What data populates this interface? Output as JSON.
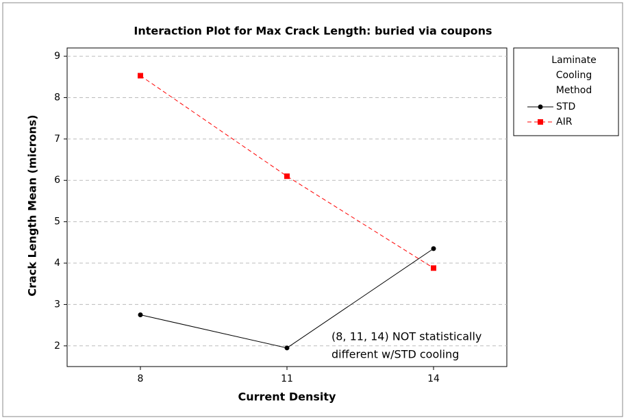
{
  "chart_data": {
    "type": "line",
    "title": "Interaction Plot for Max Crack Length: buried via coupons",
    "xlabel": "Current Density",
    "ylabel": "Crack Length Mean (microns)",
    "x": [
      8,
      11,
      14
    ],
    "xlim": [
      6.5,
      15.5
    ],
    "xticks": [
      8,
      11,
      14
    ],
    "ylim": [
      1.5,
      9.2
    ],
    "yticks": [
      2,
      3,
      4,
      5,
      6,
      7,
      8,
      9
    ],
    "grid": true,
    "legend_title": [
      "Laminate",
      "Cooling",
      "Method"
    ],
    "legend_position": "right",
    "series": [
      {
        "name": "STD",
        "color": "#000000",
        "marker": "circle",
        "linestyle": "solid",
        "values": [
          2.75,
          1.95,
          4.35
        ]
      },
      {
        "name": "AIR",
        "color": "#ff0000",
        "marker": "square",
        "linestyle": "dashed",
        "values": [
          8.53,
          6.1,
          3.88
        ]
      }
    ],
    "annotation": [
      "(8, 11, 14) NOT statistically",
      "different w/STD cooling"
    ]
  }
}
